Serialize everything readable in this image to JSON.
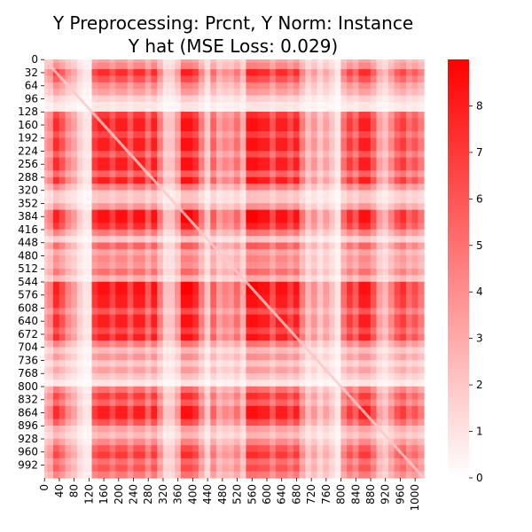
{
  "chart_data": {
    "type": "heatmap",
    "title_lines": [
      "Y Preprocessing: Prcnt, Y Norm: Instance",
      "Y hat (MSE Loss: 0.029)"
    ],
    "matrix_size": 1024,
    "x_ticks": [
      0,
      40,
      80,
      120,
      160,
      200,
      240,
      280,
      320,
      360,
      400,
      440,
      480,
      520,
      560,
      600,
      640,
      680,
      720,
      760,
      800,
      840,
      880,
      920,
      960,
      1000
    ],
    "y_ticks": [
      0,
      32,
      64,
      96,
      128,
      160,
      192,
      224,
      256,
      288,
      320,
      352,
      384,
      416,
      448,
      480,
      512,
      544,
      576,
      608,
      640,
      672,
      704,
      736,
      768,
      800,
      832,
      864,
      896,
      928,
      960,
      992
    ],
    "colorbar": {
      "range": [
        0,
        9
      ],
      "ticks": [
        0,
        1,
        2,
        3,
        4,
        5,
        6,
        7,
        8
      ],
      "color_low": "#ffffff",
      "color_high": "#ff0000"
    },
    "row_profile": [
      {
        "start": 0,
        "end": 8,
        "level": 0.45
      },
      {
        "start": 8,
        "end": 24,
        "level": 0.55
      },
      {
        "start": 24,
        "end": 40,
        "level": 0.9
      },
      {
        "start": 40,
        "end": 56,
        "level": 0.75
      },
      {
        "start": 56,
        "end": 72,
        "level": 0.55
      },
      {
        "start": 72,
        "end": 88,
        "level": 0.45
      },
      {
        "start": 88,
        "end": 104,
        "level": 0.25
      },
      {
        "start": 104,
        "end": 128,
        "level": 0.15
      },
      {
        "start": 128,
        "end": 144,
        "level": 0.85
      },
      {
        "start": 144,
        "end": 176,
        "level": 0.95
      },
      {
        "start": 176,
        "end": 192,
        "level": 0.8
      },
      {
        "start": 192,
        "end": 224,
        "level": 0.95
      },
      {
        "start": 224,
        "end": 240,
        "level": 0.75
      },
      {
        "start": 240,
        "end": 272,
        "level": 0.95
      },
      {
        "start": 272,
        "end": 288,
        "level": 0.7
      },
      {
        "start": 288,
        "end": 304,
        "level": 0.95
      },
      {
        "start": 304,
        "end": 320,
        "level": 0.6
      },
      {
        "start": 320,
        "end": 352,
        "level": 0.3
      },
      {
        "start": 352,
        "end": 368,
        "level": 0.5
      },
      {
        "start": 368,
        "end": 400,
        "level": 1.0
      },
      {
        "start": 400,
        "end": 416,
        "level": 0.9
      },
      {
        "start": 416,
        "end": 432,
        "level": 0.6
      },
      {
        "start": 432,
        "end": 448,
        "level": 0.3
      },
      {
        "start": 448,
        "end": 464,
        "level": 0.7
      },
      {
        "start": 464,
        "end": 480,
        "level": 0.45
      },
      {
        "start": 480,
        "end": 496,
        "level": 0.55
      },
      {
        "start": 496,
        "end": 512,
        "level": 0.5
      },
      {
        "start": 512,
        "end": 528,
        "level": 0.65
      },
      {
        "start": 528,
        "end": 544,
        "level": 0.4
      },
      {
        "start": 544,
        "end": 576,
        "level": 1.0
      },
      {
        "start": 576,
        "end": 608,
        "level": 0.95
      },
      {
        "start": 608,
        "end": 624,
        "level": 0.75
      },
      {
        "start": 624,
        "end": 656,
        "level": 0.95
      },
      {
        "start": 656,
        "end": 672,
        "level": 0.8
      },
      {
        "start": 672,
        "end": 688,
        "level": 0.95
      },
      {
        "start": 688,
        "end": 704,
        "level": 0.6
      },
      {
        "start": 704,
        "end": 720,
        "level": 0.35
      },
      {
        "start": 720,
        "end": 736,
        "level": 0.5
      },
      {
        "start": 736,
        "end": 752,
        "level": 0.3
      },
      {
        "start": 752,
        "end": 768,
        "level": 0.45
      },
      {
        "start": 768,
        "end": 784,
        "level": 0.3
      },
      {
        "start": 784,
        "end": 800,
        "level": 0.15
      },
      {
        "start": 800,
        "end": 816,
        "level": 0.65
      },
      {
        "start": 816,
        "end": 832,
        "level": 0.85
      },
      {
        "start": 832,
        "end": 848,
        "level": 0.7
      },
      {
        "start": 848,
        "end": 880,
        "level": 0.95
      },
      {
        "start": 880,
        "end": 896,
        "level": 0.75
      },
      {
        "start": 896,
        "end": 912,
        "level": 0.45
      },
      {
        "start": 912,
        "end": 928,
        "level": 0.35
      },
      {
        "start": 928,
        "end": 944,
        "level": 0.55
      },
      {
        "start": 944,
        "end": 960,
        "level": 0.75
      },
      {
        "start": 960,
        "end": 976,
        "level": 0.85
      },
      {
        "start": 976,
        "end": 992,
        "level": 0.65
      },
      {
        "start": 992,
        "end": 1008,
        "level": 0.75
      },
      {
        "start": 1008,
        "end": 1024,
        "level": 0.6
      }
    ],
    "diagonal_value": 1.5
  }
}
